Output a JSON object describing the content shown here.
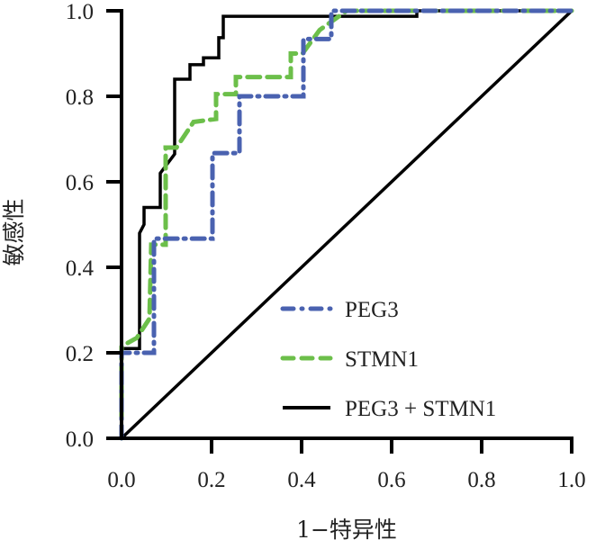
{
  "chart_data": {
    "type": "line",
    "title": "",
    "xlabel": "1−特异性",
    "ylabel": "敏感性",
    "xlim": [
      0,
      1
    ],
    "ylim": [
      0,
      1
    ],
    "grid": false,
    "xticks": [
      "0.0",
      "0.2",
      "0.4",
      "0.6",
      "0.8",
      "1.0"
    ],
    "yticks": [
      "0.0",
      "0.2",
      "0.4",
      "0.6",
      "0.8",
      "1.0"
    ],
    "legend_position": "bottom-right",
    "reference_line": {
      "x": [
        0,
        1
      ],
      "y": [
        0,
        1
      ]
    },
    "series": [
      {
        "name": "PEG3",
        "color": "#4a62b0",
        "style": "dash-dot",
        "x": [
          0,
          0,
          0.072,
          0.072,
          0.202,
          0.202,
          0.262,
          0.262,
          0.404,
          0.404,
          0.466,
          0.466,
          1.0
        ],
        "y": [
          0,
          0.2,
          0.2,
          0.467,
          0.467,
          0.667,
          0.667,
          0.8,
          0.8,
          0.934,
          0.934,
          1.0,
          1.0
        ]
      },
      {
        "name": "STMN1",
        "color": "#6cbf4a",
        "style": "dashed",
        "x": [
          0,
          0,
          0.034,
          0.062,
          0.066,
          0.066,
          0.098,
          0.098,
          0.122,
          0.16,
          0.21,
          0.21,
          0.254,
          0.254,
          0.376,
          0.376,
          0.402,
          0.44,
          0.5,
          1.0
        ],
        "y": [
          0,
          0.215,
          0.235,
          0.28,
          0.453,
          0.453,
          0.453,
          0.68,
          0.68,
          0.74,
          0.747,
          0.805,
          0.805,
          0.845,
          0.845,
          0.9,
          0.9,
          0.955,
          1.0,
          1.0
        ]
      },
      {
        "name": "PEG3 + STMN1",
        "color": "#000000",
        "style": "solid",
        "x": [
          0,
          0,
          0.04,
          0.04,
          0.05,
          0.05,
          0.086,
          0.086,
          0.118,
          0.118,
          0.152,
          0.152,
          0.182,
          0.182,
          0.216,
          0.216,
          0.226,
          0.226,
          0.656,
          0.656,
          1.0
        ],
        "y": [
          0,
          0.21,
          0.21,
          0.48,
          0.5,
          0.54,
          0.54,
          0.62,
          0.665,
          0.84,
          0.84,
          0.874,
          0.874,
          0.89,
          0.89,
          0.937,
          0.937,
          0.987,
          0.987,
          1.0,
          1.0
        ]
      }
    ]
  }
}
